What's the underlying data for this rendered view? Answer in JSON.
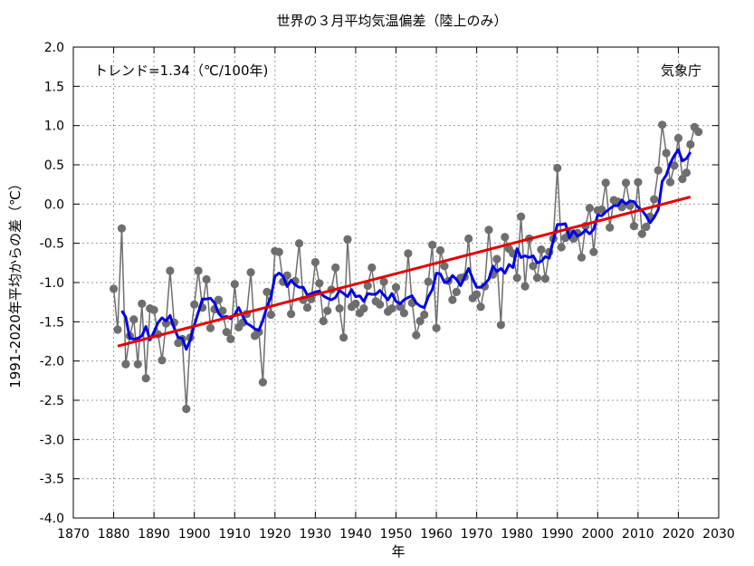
{
  "chart_data": {
    "type": "line",
    "title": "世界の３月平均気温偏差（陸上のみ）",
    "xlabel": "年",
    "ylabel": "1991-2020年平均からの差（℃）",
    "annotation_trend": "トレンド=1.34（℃/100年)",
    "annotation_source": "気象庁",
    "xlim": [
      1870,
      2030
    ],
    "ylim": [
      -4.0,
      2.0
    ],
    "xticks": [
      1870,
      1880,
      1890,
      1900,
      1910,
      1920,
      1930,
      1940,
      1950,
      1960,
      1970,
      1980,
      1990,
      2000,
      2010,
      2020,
      2030
    ],
    "yticks": [
      "2.0",
      "1.5",
      "1.0",
      "0.5",
      "0.0",
      "-0.5",
      "-1.0",
      "-1.5",
      "-2.0",
      "-2.5",
      "-3.0",
      "-3.5",
      "-4.0"
    ],
    "grid": true,
    "colors": {
      "annual": "#6e6e6e",
      "running_mean": "#0000e6",
      "trend": "#e60000"
    },
    "series": [
      {
        "kind": "annual",
        "x": [
          1880,
          1881,
          1882,
          1883,
          1884,
          1885,
          1886,
          1887,
          1888,
          1889,
          1890,
          1891,
          1892,
          1893,
          1894,
          1895,
          1896,
          1897,
          1898,
          1899,
          1900,
          1901,
          1902,
          1903,
          1904,
          1905,
          1906,
          1907,
          1908,
          1909,
          1910,
          1911,
          1912,
          1913,
          1914,
          1915,
          1916,
          1917,
          1918,
          1919,
          1920,
          1921,
          1922,
          1923,
          1924,
          1925,
          1926,
          1927,
          1928,
          1929,
          1930,
          1931,
          1932,
          1933,
          1934,
          1935,
          1936,
          1937,
          1938,
          1939,
          1940,
          1941,
          1942,
          1943,
          1944,
          1945,
          1946,
          1947,
          1948,
          1949,
          1950,
          1951,
          1952,
          1953,
          1954,
          1955,
          1956,
          1957,
          1958,
          1959,
          1960,
          1961,
          1962,
          1963,
          1964,
          1965,
          1966,
          1967,
          1968,
          1969,
          1970,
          1971,
          1972,
          1973,
          1974,
          1975,
          1976,
          1977,
          1978,
          1979,
          1980,
          1981,
          1982,
          1983,
          1984,
          1985,
          1986,
          1987,
          1988,
          1989,
          1990,
          1991,
          1992,
          1993,
          1994,
          1995,
          1996,
          1997,
          1998,
          1999,
          2000,
          2001,
          2002,
          2003,
          2004,
          2005,
          2006,
          2007,
          2008,
          2009,
          2010,
          2011,
          2012,
          2013,
          2014,
          2015,
          2016,
          2017,
          2018,
          2019,
          2020,
          2021,
          2022,
          2023,
          2024,
          2025
        ],
        "y": [
          -1.08,
          -1.6,
          -0.31,
          -2.04,
          -1.68,
          -1.47,
          -2.04,
          -1.27,
          -2.22,
          -1.33,
          -1.35,
          -1.66,
          -1.99,
          -1.52,
          -0.85,
          -1.51,
          -1.77,
          -1.72,
          -2.61,
          -1.7,
          -1.28,
          -0.85,
          -1.32,
          -0.96,
          -1.58,
          -1.34,
          -1.22,
          -1.36,
          -1.63,
          -1.72,
          -1.02,
          -1.57,
          -1.51,
          -1.4,
          -0.87,
          -1.68,
          -1.63,
          -2.27,
          -1.12,
          -1.41,
          -0.6,
          -0.61,
          -0.99,
          -0.91,
          -1.4,
          -0.98,
          -0.5,
          -1.22,
          -1.32,
          -1.21,
          -0.74,
          -1.01,
          -1.49,
          -1.36,
          -1.09,
          -0.81,
          -1.33,
          -1.7,
          -0.45,
          -1.31,
          -1.27,
          -1.39,
          -1.33,
          -1.04,
          -0.81,
          -1.24,
          -1.28,
          -0.99,
          -1.37,
          -1.33,
          -1.06,
          -1.31,
          -1.39,
          -0.63,
          -1.26,
          -1.67,
          -1.49,
          -1.41,
          -0.99,
          -0.52,
          -1.58,
          -0.59,
          -0.79,
          -0.98,
          -1.22,
          -1.12,
          -0.94,
          -0.93,
          -0.44,
          -1.2,
          -1.15,
          -1.31,
          -1.05,
          -0.33,
          -0.9,
          -0.7,
          -1.54,
          -0.42,
          -0.57,
          -0.63,
          -0.94,
          -0.16,
          -1.05,
          -0.44,
          -0.79,
          -0.94,
          -0.58,
          -0.95,
          -0.61,
          -0.44,
          0.46,
          -0.55,
          -0.43,
          -0.37,
          -0.44,
          -0.37,
          -0.68,
          -0.28,
          -0.05,
          -0.61,
          -0.08,
          -0.07,
          0.27,
          -0.3,
          0.05,
          0.03,
          -0.04,
          0.27,
          -0.02,
          -0.28,
          0.28,
          -0.38,
          -0.29,
          -0.16,
          0.06,
          0.43,
          1.01,
          0.65,
          0.28,
          0.49,
          0.84,
          0.32,
          0.4,
          0.76,
          0.98,
          0.92
        ]
      },
      {
        "kind": "running_mean",
        "x": [
          1882,
          1883,
          1884,
          1885,
          1886,
          1887,
          1888,
          1889,
          1890,
          1891,
          1892,
          1893,
          1894,
          1895,
          1896,
          1897,
          1898,
          1899,
          1900,
          1901,
          1902,
          1903,
          1904,
          1905,
          1906,
          1907,
          1908,
          1909,
          1910,
          1911,
          1912,
          1913,
          1914,
          1915,
          1916,
          1917,
          1918,
          1919,
          1920,
          1921,
          1922,
          1923,
          1924,
          1925,
          1926,
          1927,
          1928,
          1929,
          1930,
          1931,
          1932,
          1933,
          1934,
          1935,
          1936,
          1937,
          1938,
          1939,
          1940,
          1941,
          1942,
          1943,
          1944,
          1945,
          1946,
          1947,
          1948,
          1949,
          1950,
          1951,
          1952,
          1953,
          1954,
          1955,
          1956,
          1957,
          1958,
          1959,
          1960,
          1961,
          1962,
          1963,
          1964,
          1965,
          1966,
          1967,
          1968,
          1969,
          1970,
          1971,
          1972,
          1973,
          1974,
          1975,
          1976,
          1977,
          1978,
          1979,
          1980,
          1981,
          1982,
          1983,
          1984,
          1985,
          1986,
          1987,
          1988,
          1989,
          1990,
          1991,
          1992,
          1993,
          1994,
          1995,
          1996,
          1997,
          1998,
          1999,
          2000,
          2001,
          2002,
          2003,
          2004,
          2005,
          2006,
          2007,
          2008,
          2009,
          2010,
          2011,
          2012,
          2013,
          2014,
          2015,
          2016,
          2017,
          2018,
          2019,
          2020,
          2021,
          2022,
          2023
        ],
        "y": [
          -1.36,
          -1.44,
          -1.71,
          -1.72,
          -1.71,
          -1.68,
          -1.56,
          -1.73,
          -1.63,
          -1.51,
          -1.45,
          -1.49,
          -1.42,
          -1.58,
          -1.7,
          -1.71,
          -1.85,
          -1.73,
          -1.54,
          -1.38,
          -1.21,
          -1.21,
          -1.2,
          -1.26,
          -1.39,
          -1.45,
          -1.43,
          -1.46,
          -1.41,
          -1.32,
          -1.43,
          -1.52,
          -1.55,
          -1.59,
          -1.61,
          -1.48,
          -1.31,
          -1.18,
          -0.92,
          -0.88,
          -0.92,
          -1.05,
          -0.97,
          -1.03,
          -1.06,
          -1.06,
          -1.16,
          -1.14,
          -1.12,
          -1.11,
          -1.17,
          -1.2,
          -1.22,
          -1.19,
          -1.1,
          -1.14,
          -1.18,
          -1.09,
          -1.18,
          -1.17,
          -1.24,
          -1.14,
          -1.15,
          -1.15,
          -1.1,
          -1.16,
          -1.22,
          -1.14,
          -1.24,
          -1.27,
          -1.22,
          -1.19,
          -1.17,
          -1.26,
          -1.3,
          -1.32,
          -1.18,
          -1.09,
          -0.88,
          -0.89,
          -1.0,
          -0.99,
          -0.91,
          -0.96,
          -1.04,
          -0.93,
          -0.82,
          -0.95,
          -1.06,
          -1.06,
          -1.02,
          -0.96,
          -0.79,
          -0.86,
          -0.82,
          -0.88,
          -0.77,
          -0.81,
          -0.57,
          -0.68,
          -0.66,
          -0.68,
          -0.66,
          -0.75,
          -0.73,
          -0.67,
          -0.69,
          -0.46,
          -0.26,
          -0.26,
          -0.25,
          -0.43,
          -0.34,
          -0.41,
          -0.38,
          -0.33,
          -0.38,
          -0.32,
          -0.14,
          -0.15,
          -0.1,
          -0.06,
          -0.02,
          -0.02,
          0.05,
          0.0,
          0.04,
          0.03,
          -0.04,
          -0.08,
          -0.15,
          -0.24,
          -0.17,
          -0.07,
          0.29,
          0.37,
          0.52,
          0.62,
          0.69,
          0.55,
          0.58,
          0.66
        ]
      },
      {
        "kind": "trend",
        "x": [
          1881,
          2023
        ],
        "y": [
          -1.81,
          0.09
        ]
      }
    ]
  }
}
